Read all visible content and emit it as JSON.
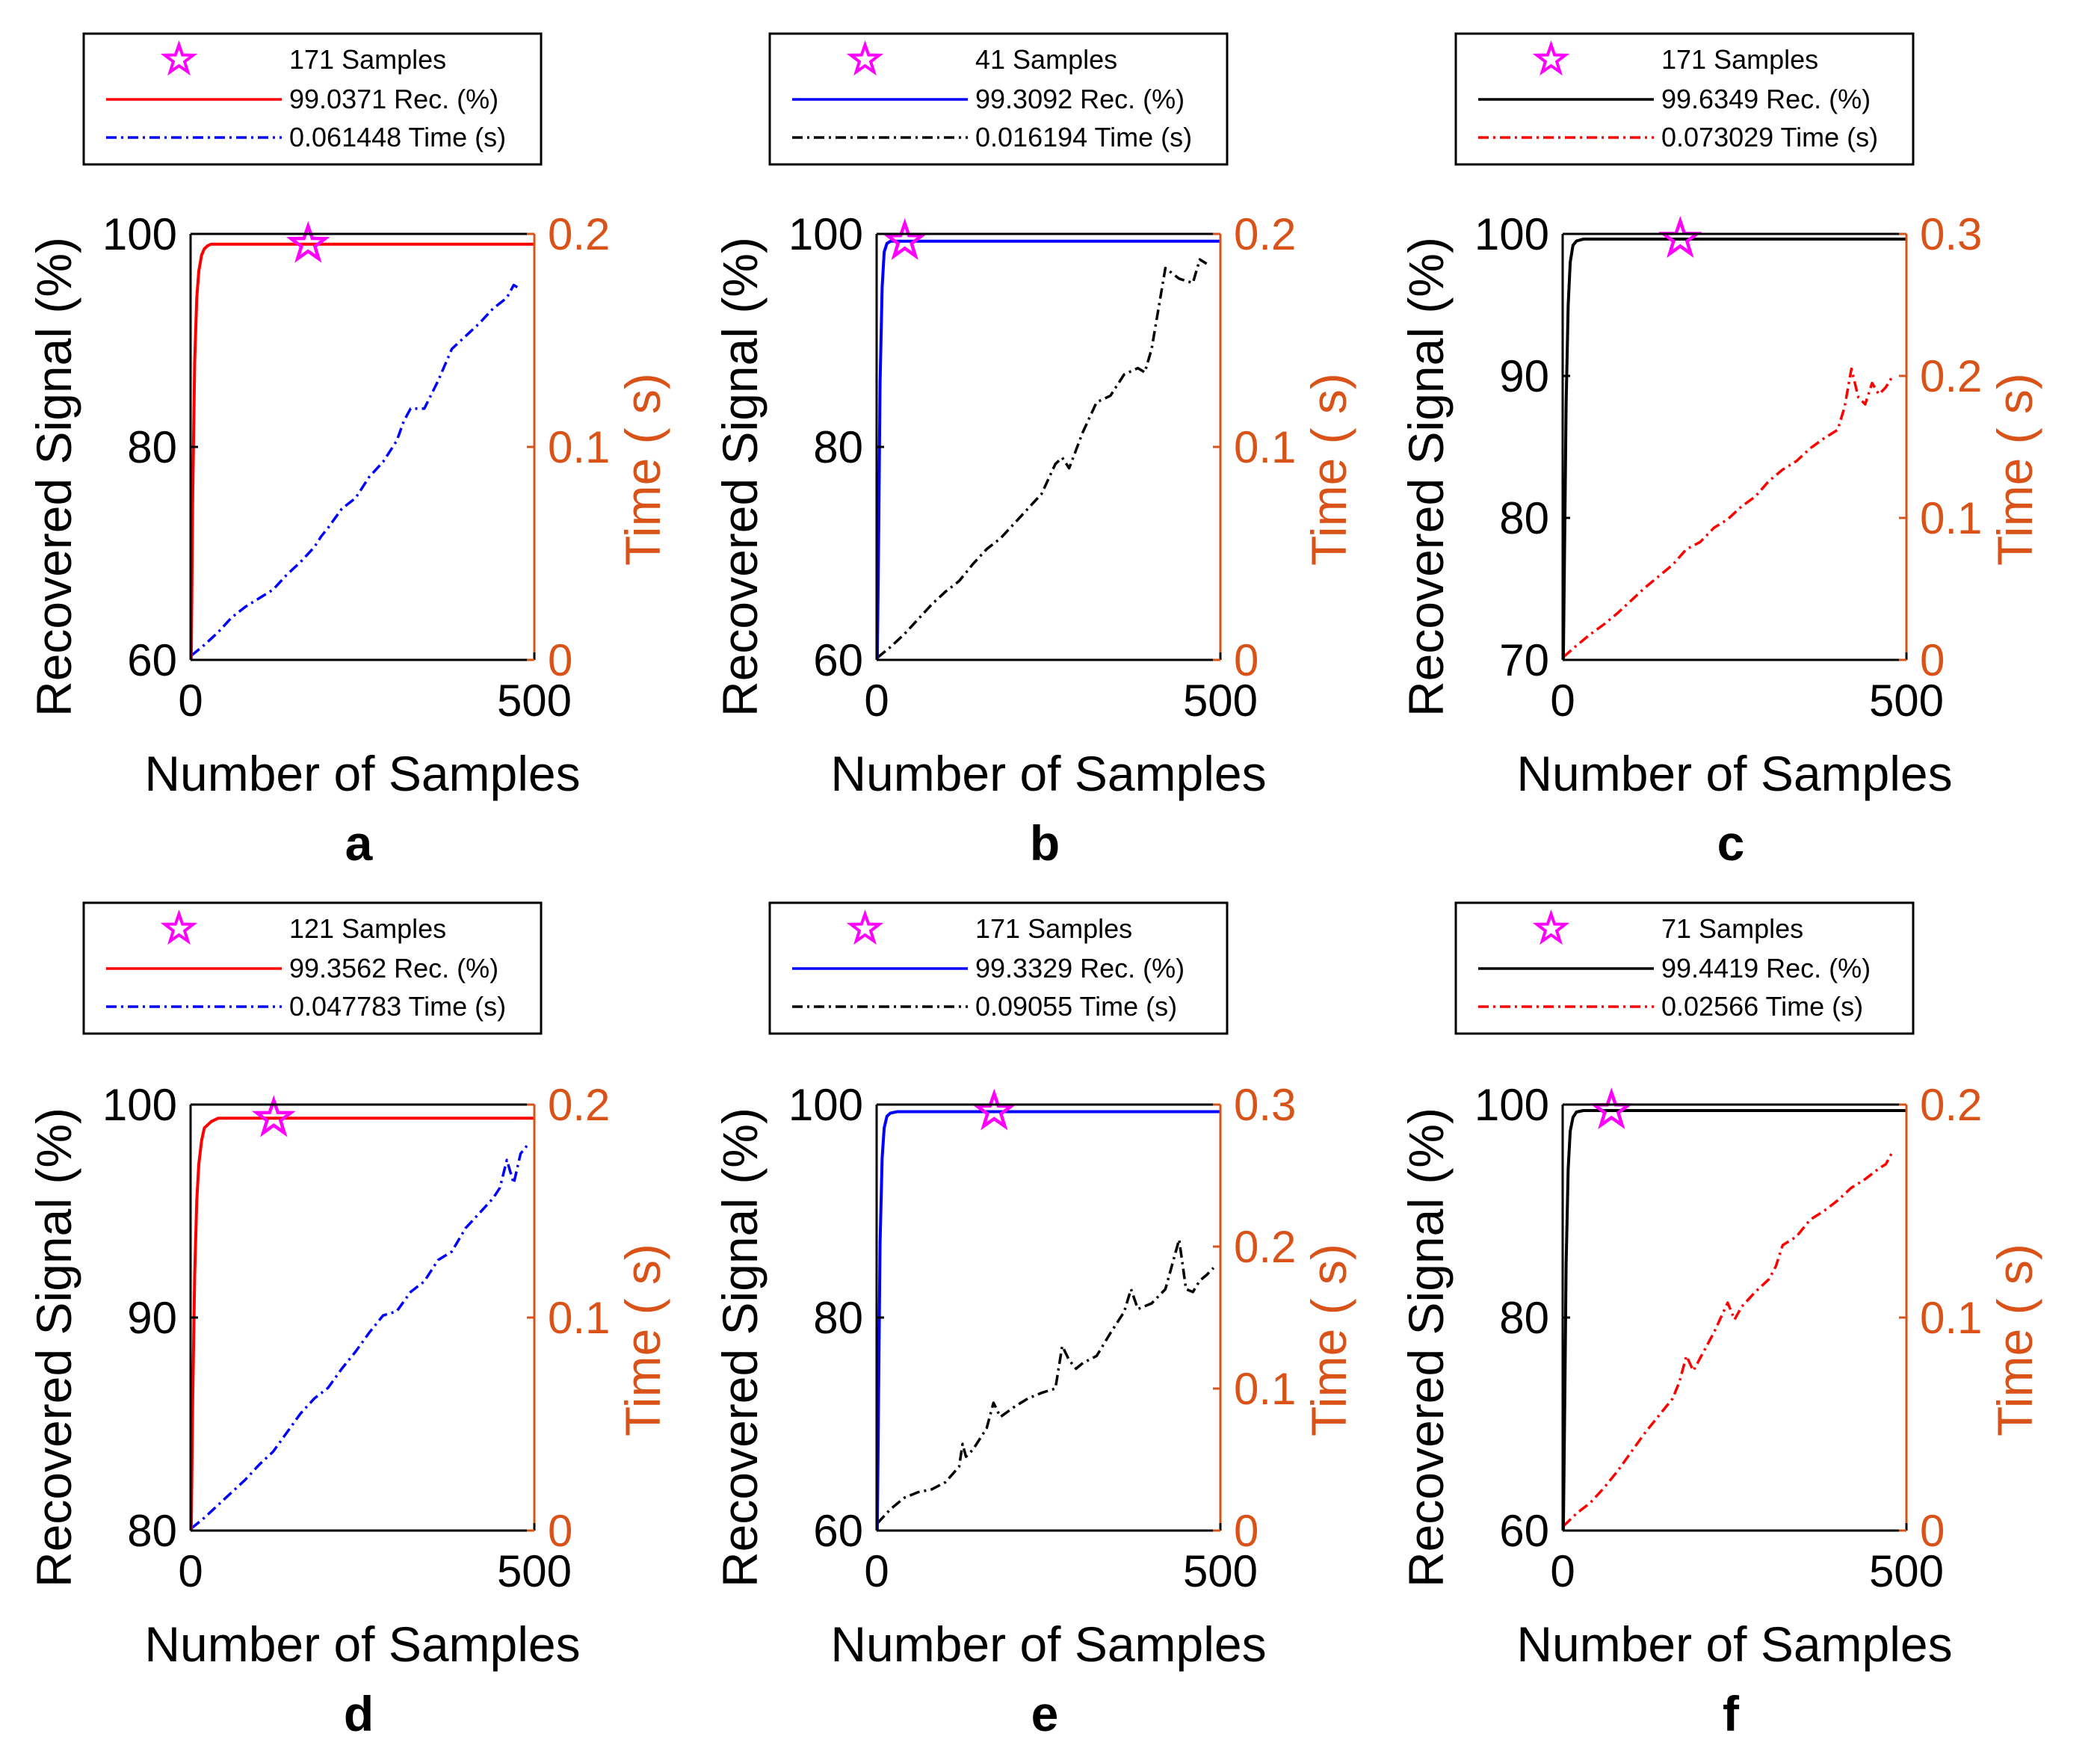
{
  "colors": {
    "red": "#ff0000",
    "blue": "#0000ff",
    "black": "#000000",
    "magenta": "#ff00ff",
    "time_axis": "#d95319"
  },
  "chart_data": [
    {
      "id": "a",
      "panel_label": "a",
      "type": "line",
      "xlabel": "Number of Samples",
      "ylabel_left": "Recovered Signal (%)",
      "ylabel_right": "Time ( s)",
      "xlim": [
        0,
        500
      ],
      "ylim_left": [
        60,
        100
      ],
      "ylim_right": [
        0,
        0.2
      ],
      "xticks": [
        0,
        500
      ],
      "yticks_left": [
        60,
        80,
        100
      ],
      "yticks_right": [
        0,
        0.1,
        0.2
      ],
      "rec_color": "#ff0000",
      "time_color": "#0000ff",
      "legend": {
        "marker": "171 Samples",
        "rec": "99.0371 Rec. (%)",
        "time": "0.061448 Time (s)"
      },
      "marker_point": {
        "x": 171,
        "y": 99.0371
      },
      "rec_series": {
        "x": [
          1,
          3,
          6,
          9,
          12,
          16,
          20,
          25,
          30,
          500
        ],
        "y": [
          60,
          75,
          88,
          94,
          96.5,
          98,
          98.6,
          98.9,
          99.0371,
          99.0371
        ]
      },
      "time_series": {
        "x": [
          1,
          20,
          40,
          60,
          80,
          100,
          120,
          140,
          160,
          180,
          190,
          200,
          220,
          240,
          260,
          280,
          300,
          310,
          320,
          340,
          360,
          380,
          400,
          420,
          440,
          460,
          470,
          480
        ],
        "y": [
          0.002,
          0.007,
          0.013,
          0.02,
          0.025,
          0.029,
          0.033,
          0.04,
          0.046,
          0.053,
          0.058,
          0.062,
          0.071,
          0.076,
          0.086,
          0.093,
          0.103,
          0.112,
          0.118,
          0.118,
          0.131,
          0.146,
          0.152,
          0.158,
          0.165,
          0.17,
          0.176,
          0.174
        ]
      }
    },
    {
      "id": "b",
      "panel_label": "b",
      "type": "line",
      "xlabel": "Number of Samples",
      "ylabel_left": "Recovered Signal (%)",
      "ylabel_right": "Time ( s)",
      "xlim": [
        0,
        500
      ],
      "ylim_left": [
        60,
        100
      ],
      "ylim_right": [
        0,
        0.2
      ],
      "xticks": [
        0,
        500
      ],
      "yticks_left": [
        60,
        80,
        100
      ],
      "yticks_right": [
        0,
        0.1,
        0.2
      ],
      "rec_color": "#0000ff",
      "time_color": "#000000",
      "legend": {
        "marker": "41 Samples",
        "rec": "99.3092 Rec. (%)",
        "time": "0.016194 Time (s)"
      },
      "marker_point": {
        "x": 41,
        "y": 99.3092
      },
      "rec_series": {
        "x": [
          1,
          3,
          5,
          8,
          11,
          15,
          20,
          500
        ],
        "y": [
          60,
          72,
          86,
          95,
          98.3,
          99.1,
          99.3092,
          99.3092
        ]
      },
      "time_series": {
        "x": [
          1,
          20,
          40,
          60,
          80,
          100,
          120,
          140,
          160,
          180,
          200,
          220,
          240,
          260,
          270,
          280,
          300,
          320,
          340,
          360,
          380,
          390,
          400,
          410,
          420,
          440,
          460,
          470,
          480
        ],
        "y": [
          0.001,
          0.006,
          0.012,
          0.019,
          0.026,
          0.032,
          0.037,
          0.045,
          0.052,
          0.057,
          0.064,
          0.071,
          0.078,
          0.092,
          0.095,
          0.09,
          0.107,
          0.121,
          0.124,
          0.134,
          0.137,
          0.135,
          0.146,
          0.165,
          0.184,
          0.179,
          0.177,
          0.188,
          0.186
        ]
      }
    },
    {
      "id": "c",
      "panel_label": "c",
      "type": "line",
      "xlabel": "Number of Samples",
      "ylabel_left": "Recovered Signal (%)",
      "ylabel_right": "Time ( s)",
      "xlim": [
        0,
        500
      ],
      "ylim_left": [
        70,
        100
      ],
      "ylim_right": [
        0,
        0.3
      ],
      "xticks": [
        0,
        500
      ],
      "yticks_left": [
        70,
        80,
        90,
        100
      ],
      "yticks_right": [
        0,
        0.1,
        0.2,
        0.3
      ],
      "rec_color": "#000000",
      "time_color": "#ff0000",
      "legend": {
        "marker": "171 Samples",
        "rec": "99.6349 Rec. (%)",
        "time": "0.073029 Time (s)"
      },
      "marker_point": {
        "x": 171,
        "y": 99.6349
      },
      "rec_series": {
        "x": [
          1,
          3,
          5,
          8,
          11,
          15,
          20,
          30,
          500
        ],
        "y": [
          70,
          79,
          88,
          95,
          98,
          99.2,
          99.5,
          99.6349,
          99.6349
        ]
      },
      "time_series": {
        "x": [
          1,
          20,
          40,
          60,
          80,
          100,
          120,
          140,
          160,
          180,
          200,
          220,
          240,
          260,
          280,
          300,
          320,
          340,
          360,
          380,
          400,
          410,
          420,
          430,
          440,
          450,
          460,
          470,
          480
        ],
        "y": [
          0.002,
          0.01,
          0.018,
          0.025,
          0.033,
          0.042,
          0.051,
          0.059,
          0.067,
          0.078,
          0.083,
          0.093,
          0.099,
          0.108,
          0.115,
          0.126,
          0.134,
          0.14,
          0.149,
          0.156,
          0.162,
          0.178,
          0.205,
          0.185,
          0.18,
          0.195,
          0.187,
          0.192,
          0.2
        ]
      }
    },
    {
      "id": "d",
      "panel_label": "d",
      "type": "line",
      "xlabel": "Number of Samples",
      "ylabel_left": "Recovered Signal (%)",
      "ylabel_right": "Time ( s)",
      "xlim": [
        0,
        500
      ],
      "ylim_left": [
        80,
        100
      ],
      "ylim_right": [
        0,
        0.2
      ],
      "xticks": [
        0,
        500
      ],
      "yticks_left": [
        80,
        90,
        100
      ],
      "yticks_right": [
        0,
        0.1,
        0.2
      ],
      "rec_color": "#ff0000",
      "time_color": "#0000ff",
      "legend": {
        "marker": "121 Samples",
        "rec": "99.3562 Rec. (%)",
        "time": "0.047783 Time (s)"
      },
      "marker_point": {
        "x": 121,
        "y": 99.3562
      },
      "rec_series": {
        "x": [
          1,
          3,
          6,
          9,
          12,
          16,
          20,
          30,
          40,
          500
        ],
        "y": [
          80,
          86,
          92,
          95.5,
          97.2,
          98.3,
          98.9,
          99.2,
          99.3562,
          99.3562
        ]
      },
      "time_series": {
        "x": [
          1,
          20,
          40,
          60,
          80,
          100,
          120,
          140,
          160,
          180,
          200,
          220,
          240,
          260,
          280,
          300,
          320,
          340,
          360,
          380,
          400,
          420,
          440,
          450,
          460,
          470,
          480,
          490
        ],
        "y": [
          0.001,
          0.006,
          0.012,
          0.018,
          0.024,
          0.031,
          0.037,
          0.046,
          0.055,
          0.062,
          0.067,
          0.076,
          0.084,
          0.093,
          0.101,
          0.103,
          0.112,
          0.117,
          0.127,
          0.131,
          0.142,
          0.149,
          0.156,
          0.161,
          0.174,
          0.163,
          0.177,
          0.181
        ]
      }
    },
    {
      "id": "e",
      "panel_label": "e",
      "type": "line",
      "xlabel": "Number of Samples",
      "ylabel_left": "Recovered Signal (%)",
      "ylabel_right": "Time ( s)",
      "xlim": [
        0,
        500
      ],
      "ylim_left": [
        60,
        100
      ],
      "ylim_right": [
        0,
        0.3
      ],
      "xticks": [
        0,
        500
      ],
      "yticks_left": [
        60,
        80,
        100
      ],
      "yticks_right": [
        0,
        0.1,
        0.2,
        0.3
      ],
      "rec_color": "#0000ff",
      "time_color": "#000000",
      "legend": {
        "marker": "171 Samples",
        "rec": "99.3329 Rec. (%)",
        "time": "0.09055 Time (s)"
      },
      "marker_point": {
        "x": 171,
        "y": 99.3329
      },
      "rec_series": {
        "x": [
          1,
          3,
          5,
          8,
          11,
          15,
          20,
          30,
          500
        ],
        "y": [
          60,
          74,
          87,
          95,
          97.8,
          98.9,
          99.2,
          99.3329,
          99.3329
        ]
      },
      "time_series": {
        "x": [
          1,
          20,
          40,
          60,
          80,
          100,
          120,
          125,
          130,
          140,
          160,
          170,
          180,
          200,
          220,
          240,
          260,
          270,
          280,
          290,
          300,
          320,
          340,
          360,
          370,
          380,
          400,
          420,
          440,
          450,
          460,
          470,
          480,
          490
        ],
        "y": [
          0.005,
          0.015,
          0.023,
          0.027,
          0.029,
          0.034,
          0.045,
          0.061,
          0.052,
          0.057,
          0.072,
          0.09,
          0.08,
          0.087,
          0.093,
          0.097,
          0.1,
          0.13,
          0.12,
          0.114,
          0.118,
          0.123,
          0.139,
          0.154,
          0.17,
          0.156,
          0.16,
          0.17,
          0.205,
          0.17,
          0.168,
          0.176,
          0.18,
          0.185
        ]
      }
    },
    {
      "id": "f",
      "panel_label": "f",
      "type": "line",
      "xlabel": "Number of Samples",
      "ylabel_left": "Recovered Signal (%)",
      "ylabel_right": "Time ( s)",
      "xlim": [
        0,
        500
      ],
      "ylim_left": [
        60,
        100
      ],
      "ylim_right": [
        0,
        0.2
      ],
      "xticks": [
        0,
        500
      ],
      "yticks_left": [
        60,
        80,
        100
      ],
      "yticks_right": [
        0,
        0.1,
        0.2
      ],
      "rec_color": "#000000",
      "time_color": "#ff0000",
      "legend": {
        "marker": "71 Samples",
        "rec": "99.4419 Rec. (%)",
        "time": "0.02566 Time (s)"
      },
      "marker_point": {
        "x": 71,
        "y": 99.4419
      },
      "rec_series": {
        "x": [
          1,
          3,
          5,
          8,
          11,
          15,
          20,
          30,
          500
        ],
        "y": [
          60,
          72,
          85,
          94,
          97.5,
          98.8,
          99.3,
          99.4419,
          99.4419
        ]
      },
      "time_series": {
        "x": [
          1,
          20,
          40,
          60,
          80,
          100,
          120,
          140,
          160,
          170,
          180,
          190,
          200,
          220,
          240,
          250,
          260,
          280,
          300,
          310,
          320,
          340,
          360,
          380,
          400,
          420,
          440,
          460,
          470,
          480
        ],
        "y": [
          0.002,
          0.008,
          0.013,
          0.02,
          0.028,
          0.037,
          0.046,
          0.054,
          0.062,
          0.07,
          0.082,
          0.075,
          0.081,
          0.093,
          0.107,
          0.099,
          0.105,
          0.112,
          0.118,
          0.124,
          0.134,
          0.138,
          0.146,
          0.15,
          0.155,
          0.161,
          0.165,
          0.17,
          0.172,
          0.178
        ]
      }
    }
  ]
}
